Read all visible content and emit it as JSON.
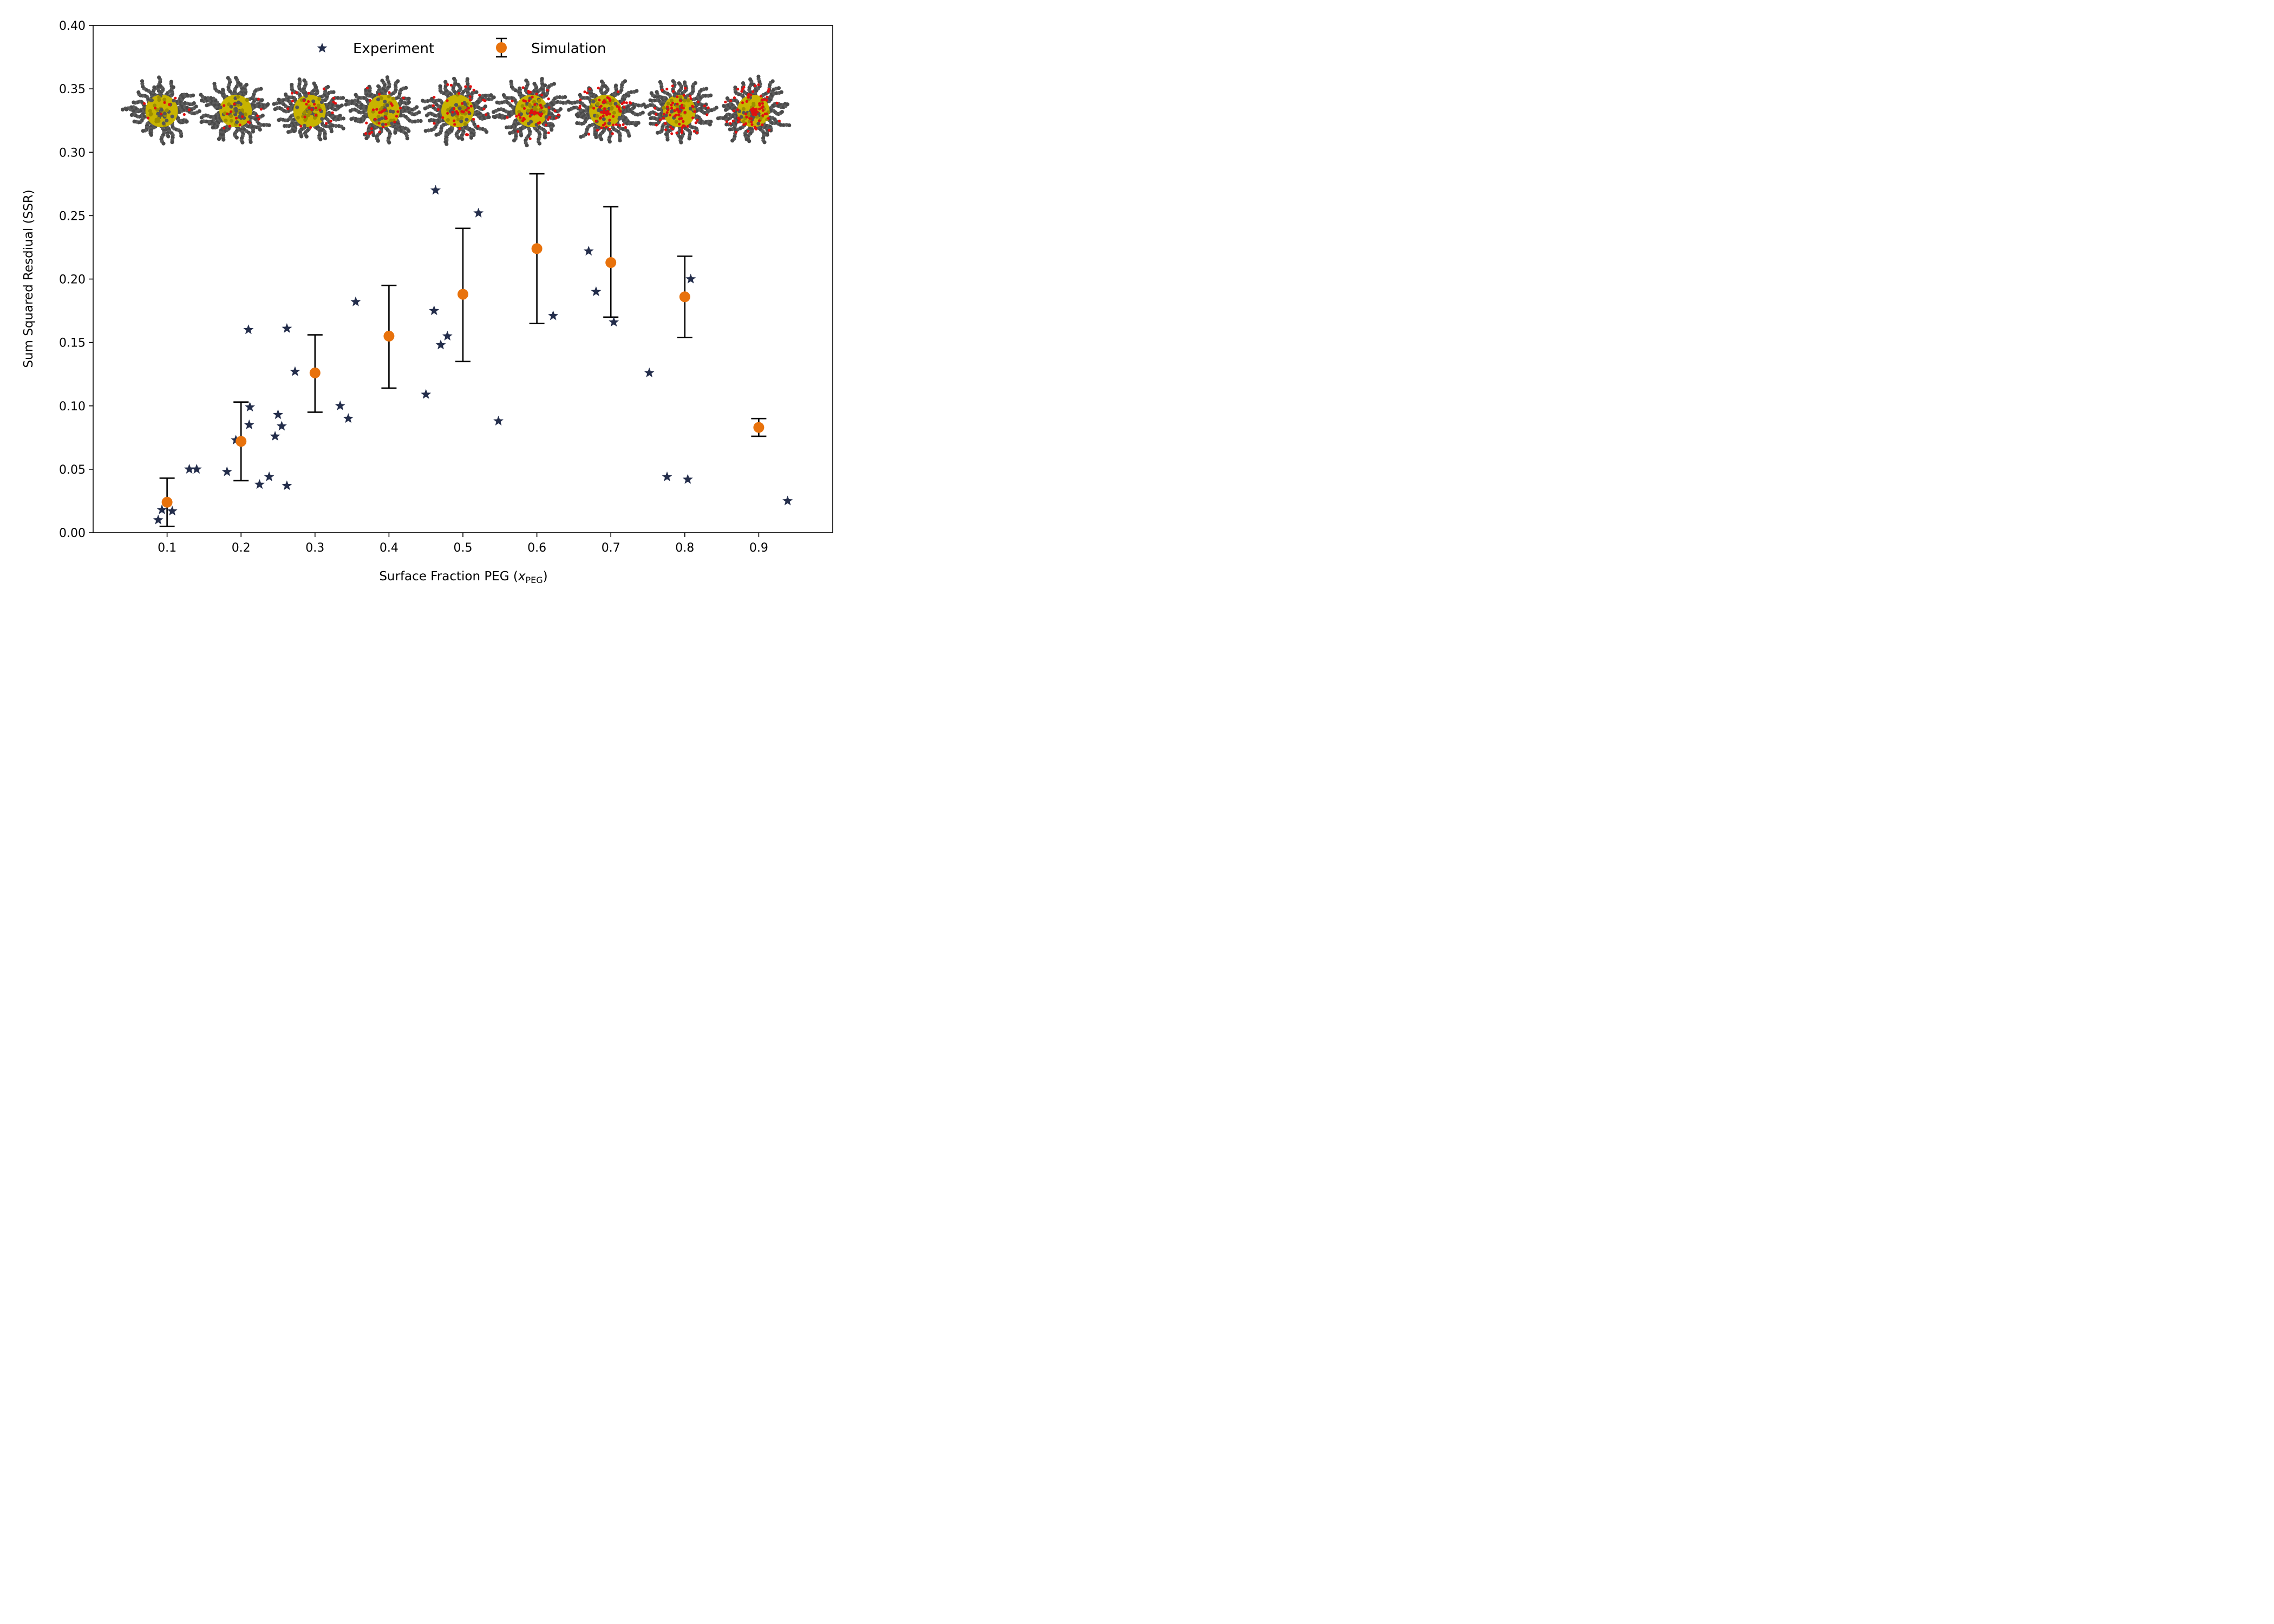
{
  "chart_data": {
    "type": "scatter",
    "xlabel": "Surface Fraction PEG (",
    "xlabel_var": "x",
    "xlabel_sub": "PEG",
    "xlabel_end": ")",
    "ylabel": "Sum Squared Resdiual (SSR)",
    "xlim": [
      0.0,
      1.0
    ],
    "ylim": [
      0.0,
      0.4
    ],
    "x_ticks": [
      "0.1",
      "0.2",
      "0.3",
      "0.4",
      "0.5",
      "0.6",
      "0.7",
      "0.8",
      "0.9"
    ],
    "y_ticks": [
      "0.00",
      "0.05",
      "0.10",
      "0.15",
      "0.20",
      "0.25",
      "0.30",
      "0.35",
      "0.40"
    ],
    "legend_position": "top-center",
    "series": [
      {
        "name": "Experiment",
        "marker": "star",
        "color": "#232d4b",
        "points": [
          [
            0.088,
            0.01
          ],
          [
            0.093,
            0.018
          ],
          [
            0.107,
            0.017
          ],
          [
            0.13,
            0.05
          ],
          [
            0.14,
            0.05
          ],
          [
            0.181,
            0.048
          ],
          [
            0.193,
            0.073
          ],
          [
            0.21,
            0.16
          ],
          [
            0.212,
            0.099
          ],
          [
            0.211,
            0.085
          ],
          [
            0.225,
            0.038
          ],
          [
            0.238,
            0.044
          ],
          [
            0.246,
            0.076
          ],
          [
            0.25,
            0.093
          ],
          [
            0.255,
            0.084
          ],
          [
            0.262,
            0.037
          ],
          [
            0.262,
            0.161
          ],
          [
            0.273,
            0.127
          ],
          [
            0.334,
            0.1
          ],
          [
            0.345,
            0.09
          ],
          [
            0.355,
            0.182
          ],
          [
            0.45,
            0.109
          ],
          [
            0.461,
            0.175
          ],
          [
            0.463,
            0.27
          ],
          [
            0.47,
            0.148
          ],
          [
            0.479,
            0.155
          ],
          [
            0.521,
            0.252
          ],
          [
            0.548,
            0.088
          ],
          [
            0.622,
            0.171
          ],
          [
            0.67,
            0.222
          ],
          [
            0.68,
            0.19
          ],
          [
            0.704,
            0.166
          ],
          [
            0.752,
            0.126
          ],
          [
            0.776,
            0.044
          ],
          [
            0.804,
            0.042
          ],
          [
            0.808,
            0.2
          ],
          [
            0.939,
            0.025
          ]
        ]
      },
      {
        "name": "Simulation",
        "marker": "circle",
        "color": "#e8720c",
        "errorbar_color": "#000000",
        "points": [
          {
            "x": 0.1,
            "y": 0.024,
            "lo": 0.005,
            "hi": 0.043
          },
          {
            "x": 0.2,
            "y": 0.072,
            "lo": 0.041,
            "hi": 0.103
          },
          {
            "x": 0.3,
            "y": 0.126,
            "lo": 0.095,
            "hi": 0.156
          },
          {
            "x": 0.4,
            "y": 0.155,
            "lo": 0.114,
            "hi": 0.195
          },
          {
            "x": 0.5,
            "y": 0.188,
            "lo": 0.135,
            "hi": 0.24
          },
          {
            "x": 0.6,
            "y": 0.224,
            "lo": 0.165,
            "hi": 0.283
          },
          {
            "x": 0.7,
            "y": 0.213,
            "lo": 0.17,
            "hi": 0.257
          },
          {
            "x": 0.8,
            "y": 0.186,
            "lo": 0.154,
            "hi": 0.218
          },
          {
            "x": 0.9,
            "y": 0.083,
            "lo": 0.076,
            "hi": 0.09
          }
        ]
      }
    ],
    "inset_images": {
      "description_count": 9,
      "x_positions": [
        0.1,
        0.2,
        0.3,
        0.4,
        0.5,
        0.6,
        0.7,
        0.8,
        0.9
      ],
      "core_fraction": [
        0.45,
        0.42,
        0.4,
        0.42,
        0.4,
        0.38,
        0.4,
        0.38,
        0.36
      ],
      "red_density": [
        0.05,
        0.12,
        0.22,
        0.3,
        0.4,
        0.5,
        0.6,
        0.7,
        0.8
      ],
      "colors": {
        "shell": "#4a4a4a",
        "core": "#c8b400",
        "peg": "#e01010"
      }
    }
  }
}
